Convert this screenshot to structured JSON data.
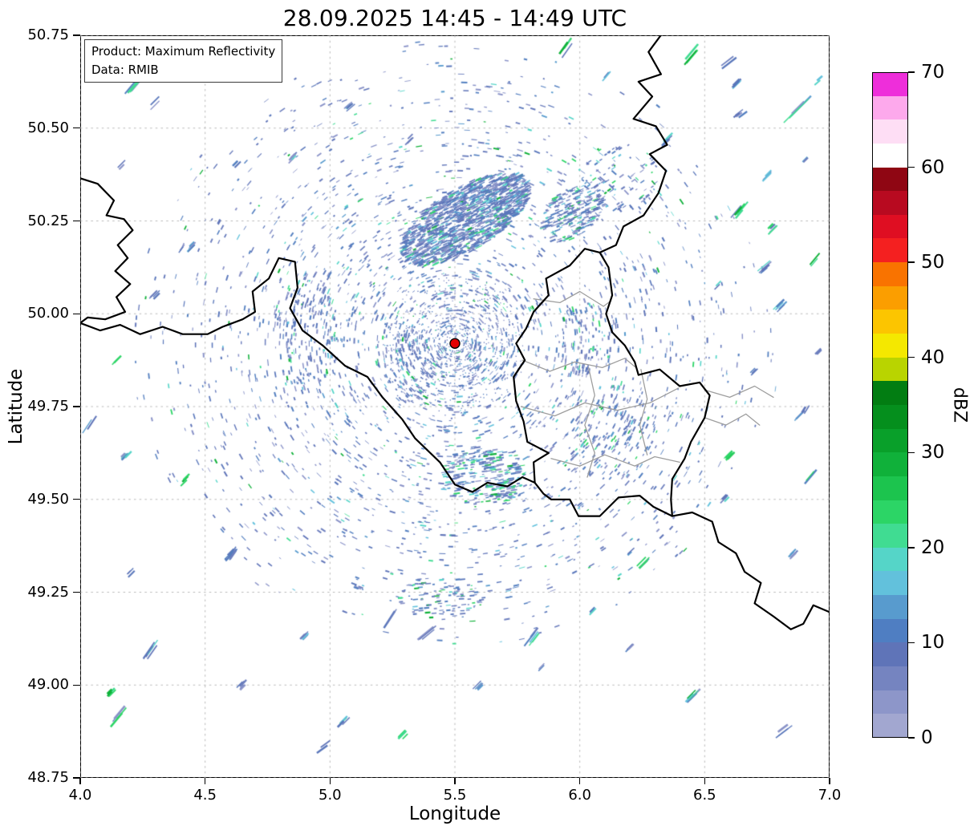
{
  "chart_data": {
    "type": "heatmap",
    "title": "28.09.2025 14:45 - 14:49 UTC",
    "xlabel": "Longitude",
    "ylabel": "Latitude",
    "xlim": [
      4.0,
      7.0
    ],
    "ylim": [
      48.75,
      50.75
    ],
    "grid": true,
    "x_ticks": [
      "4.0",
      "4.5",
      "5.0",
      "5.5",
      "6.0",
      "6.5",
      "7.0"
    ],
    "y_ticks": [
      "48.75",
      "49.00",
      "49.25",
      "49.50",
      "49.75",
      "50.00",
      "50.25",
      "50.50",
      "50.75"
    ],
    "colorbar": {
      "label": "dBZ",
      "range": [
        0,
        70
      ],
      "step": 2.5,
      "ticks": [
        "0",
        "10",
        "20",
        "30",
        "40",
        "50",
        "60",
        "70"
      ],
      "colors": [
        "#a2a7d0",
        "#8d96c9",
        "#7584c0",
        "#5f74b8",
        "#4f7ec2",
        "#589bce",
        "#62c1dc",
        "#55d5c8",
        "#40dc92",
        "#2cd566",
        "#1cc44e",
        "#10b13a",
        "#09a02a",
        "#058f1d",
        "#027d12",
        "#b9d400",
        "#f4e800",
        "#fcc500",
        "#fb9e00",
        "#f97300",
        "#f42020",
        "#df0e22",
        "#b80a20",
        "#8f0613",
        "#ffffff",
        "#fedef5",
        "#fda9ec",
        "#ee2eda"
      ]
    },
    "radar_site": {
      "lon": 5.5,
      "lat": 49.92,
      "marker_color": "#e50000"
    },
    "annotation": {
      "line1": "Product: Maximum Reflectivity",
      "line2": "Data: RMIB"
    },
    "echo_summary": "Widespread weak scattered echoes (about 0-25 dBZ) arranged in concentric speckle arcs around the radar site at (5.5E, 49.92N); densest band northeast of the radar near 5.3-5.9E / 50.15-50.35N; isolated 15-30 dBZ blue-green streaks at far range over all quadrants."
  },
  "map": {
    "border_color": "#000000",
    "inner_border_color": "#9e9e9e",
    "borders_black": [
      [
        [
          4.0,
          50.365
        ],
        [
          4.07,
          50.35
        ],
        [
          4.135,
          50.305
        ],
        [
          4.105,
          50.265
        ],
        [
          4.175,
          50.255
        ],
        [
          4.21,
          50.225
        ],
        [
          4.15,
          50.185
        ],
        [
          4.19,
          50.15
        ],
        [
          4.14,
          50.115
        ],
        [
          4.2,
          50.08
        ],
        [
          4.145,
          50.045
        ],
        [
          4.18,
          50.005
        ],
        [
          4.1,
          49.985
        ],
        [
          4.03,
          49.99
        ],
        [
          4.0,
          49.975
        ],
        [
          4.08,
          49.955
        ],
        [
          4.16,
          49.97
        ],
        [
          4.24,
          49.945
        ],
        [
          4.33,
          49.965
        ],
        [
          4.41,
          49.945
        ],
        [
          4.51,
          49.945
        ],
        [
          4.57,
          49.965
        ],
        [
          4.65,
          49.985
        ],
        [
          4.7,
          50.005
        ],
        [
          4.69,
          50.06
        ],
        [
          4.755,
          50.095
        ],
        [
          4.795,
          50.15
        ],
        [
          4.86,
          50.14
        ],
        [
          4.87,
          50.07
        ],
        [
          4.84,
          50.015
        ],
        [
          4.89,
          49.955
        ],
        [
          4.97,
          49.915
        ],
        [
          5.06,
          49.86
        ],
        [
          5.15,
          49.83
        ],
        [
          5.21,
          49.775
        ],
        [
          5.29,
          49.715
        ],
        [
          5.34,
          49.665
        ],
        [
          5.44,
          49.6
        ],
        [
          5.5,
          49.54
        ],
        [
          5.57,
          49.52
        ],
        [
          5.63,
          49.545
        ],
        [
          5.71,
          49.535
        ],
        [
          5.77,
          49.56
        ],
        [
          5.82,
          49.545
        ]
      ],
      [
        [
          5.82,
          49.545
        ],
        [
          5.815,
          49.6
        ],
        [
          5.875,
          49.625
        ],
        [
          5.79,
          49.655
        ],
        [
          5.775,
          49.71
        ],
        [
          5.745,
          49.765
        ],
        [
          5.735,
          49.83
        ],
        [
          5.78,
          49.875
        ],
        [
          5.745,
          49.92
        ],
        [
          5.785,
          49.96
        ],
        [
          5.815,
          50.005
        ],
        [
          5.875,
          50.05
        ],
        [
          5.865,
          50.095
        ],
        [
          5.96,
          50.13
        ],
        [
          6.02,
          50.175
        ],
        [
          6.08,
          50.165
        ],
        [
          6.115,
          50.125
        ],
        [
          6.13,
          50.05
        ],
        [
          6.105,
          50.0
        ],
        [
          6.13,
          49.95
        ],
        [
          6.18,
          49.915
        ],
        [
          6.22,
          49.87
        ],
        [
          6.235,
          49.835
        ],
        [
          6.32,
          49.85
        ],
        [
          6.4,
          49.805
        ],
        [
          6.48,
          49.815
        ],
        [
          6.52,
          49.78
        ],
        [
          6.5,
          49.72
        ],
        [
          6.445,
          49.655
        ],
        [
          6.42,
          49.61
        ],
        [
          6.37,
          49.555
        ],
        [
          6.365,
          49.5
        ],
        [
          6.37,
          49.455
        ],
        [
          6.295,
          49.48
        ],
        [
          6.24,
          49.51
        ],
        [
          6.155,
          49.505
        ],
        [
          6.08,
          49.455
        ],
        [
          5.995,
          49.455
        ],
        [
          5.96,
          49.5
        ],
        [
          5.885,
          49.5
        ],
        [
          5.855,
          49.515
        ],
        [
          5.82,
          49.545
        ]
      ],
      [
        [
          6.08,
          50.165
        ],
        [
          6.145,
          50.185
        ],
        [
          6.175,
          50.235
        ],
        [
          6.255,
          50.265
        ],
        [
          6.315,
          50.325
        ],
        [
          6.345,
          50.385
        ],
        [
          6.28,
          50.43
        ],
        [
          6.35,
          50.455
        ],
        [
          6.305,
          50.505
        ],
        [
          6.215,
          50.525
        ],
        [
          6.29,
          50.585
        ],
        [
          6.235,
          50.625
        ],
        [
          6.325,
          50.645
        ],
        [
          6.275,
          50.705
        ],
        [
          6.33,
          50.755
        ]
      ],
      [
        [
          6.37,
          49.455
        ],
        [
          6.45,
          49.465
        ],
        [
          6.53,
          49.44
        ],
        [
          6.555,
          49.385
        ],
        [
          6.625,
          49.355
        ],
        [
          6.66,
          49.305
        ],
        [
          6.725,
          49.275
        ],
        [
          6.7,
          49.22
        ],
        [
          6.775,
          49.185
        ],
        [
          6.845,
          49.15
        ],
        [
          6.895,
          49.165
        ],
        [
          6.935,
          49.215
        ],
        [
          7.005,
          49.195
        ]
      ]
    ],
    "borders_gray": [
      [
        [
          5.815,
          50.04
        ],
        [
          5.92,
          50.03
        ],
        [
          6.0,
          50.06
        ],
        [
          6.095,
          50.02
        ],
        [
          6.125,
          50.035
        ]
      ],
      [
        [
          5.77,
          49.875
        ],
        [
          5.88,
          49.845
        ],
        [
          5.98,
          49.87
        ],
        [
          6.09,
          49.855
        ],
        [
          6.18,
          49.88
        ],
        [
          6.225,
          49.855
        ]
      ],
      [
        [
          5.765,
          49.75
        ],
        [
          5.9,
          49.725
        ],
        [
          6.02,
          49.76
        ],
        [
          6.15,
          49.74
        ],
        [
          6.28,
          49.76
        ],
        [
          6.395,
          49.8
        ]
      ],
      [
        [
          6.035,
          49.855
        ],
        [
          6.06,
          49.78
        ],
        [
          6.02,
          49.7
        ],
        [
          6.06,
          49.625
        ],
        [
          6.03,
          49.56
        ]
      ],
      [
        [
          5.885,
          49.61
        ],
        [
          6.0,
          49.59
        ],
        [
          6.1,
          49.62
        ],
        [
          6.22,
          49.59
        ],
        [
          6.3,
          49.615
        ],
        [
          6.4,
          49.6
        ]
      ],
      [
        [
          6.245,
          49.85
        ],
        [
          6.27,
          49.77
        ],
        [
          6.24,
          49.7
        ],
        [
          6.27,
          49.62
        ]
      ],
      [
        [
          6.5,
          49.795
        ],
        [
          6.6,
          49.775
        ],
        [
          6.7,
          49.805
        ],
        [
          6.775,
          49.775
        ]
      ],
      [
        [
          6.5,
          49.72
        ],
        [
          6.585,
          49.7
        ],
        [
          6.665,
          49.73
        ],
        [
          6.72,
          49.7
        ]
      ]
    ]
  },
  "echo_field": {
    "seed": 1337,
    "palette": {
      "blue": [
        "#8a93c8",
        "#6d7fbe",
        "#5a77bb",
        "#537fc0",
        "#5f74b8"
      ],
      "cyan": [
        "#589bce",
        "#62c1dc",
        "#55d5c8"
      ],
      "green": [
        "#40dc92",
        "#2cd566",
        "#10b13a"
      ]
    },
    "ring_field": {
      "count": 3400,
      "r_min": 12,
      "r_max": 405,
      "p_green": 0.05,
      "p_cyan": 0.1
    },
    "dust": {
      "count": 700,
      "r_min": 8,
      "r_max": 90
    },
    "clusters": [
      {
        "lon": 5.54,
        "lat": 50.255,
        "dlon": 0.26,
        "dlat": 0.095,
        "tilt": 0.08,
        "count": 1500,
        "ang": 27,
        "p_green": 0.06,
        "p_cyan": 0.12,
        "size": 7
      },
      {
        "lon": 5.97,
        "lat": 50.27,
        "dlon": 0.13,
        "dlat": 0.07,
        "tilt": 0.03,
        "count": 260,
        "ang": 22,
        "p_green": 0.1,
        "p_cyan": 0.1,
        "size": 6
      },
      {
        "lon": 6.16,
        "lat": 50.37,
        "dlon": 0.17,
        "dlat": 0.09,
        "count": 110,
        "ang": 35,
        "p_green": 0.15,
        "p_cyan": 0.1,
        "size": 5
      },
      {
        "lon": 4.9,
        "lat": 49.95,
        "dlon": 0.13,
        "dlat": 0.16,
        "count": 240,
        "p_green": 0.05,
        "p_cyan": 0.08,
        "size": 5
      },
      {
        "lon": 5.62,
        "lat": 49.565,
        "dlon": 0.17,
        "dlat": 0.08,
        "count": 330,
        "ang": 8,
        "p_green": 0.22,
        "p_cyan": 0.12,
        "size": 6
      },
      {
        "lon": 6.13,
        "lat": 49.68,
        "dlon": 0.19,
        "dlat": 0.13,
        "count": 230,
        "p_green": 0.1,
        "p_cyan": 0.1,
        "size": 5
      },
      {
        "lon": 5.45,
        "lat": 49.235,
        "dlon": 0.17,
        "dlat": 0.06,
        "count": 130,
        "ang": 5,
        "p_green": 0.18,
        "p_cyan": 0.1,
        "size": 5
      },
      {
        "lon": 5.32,
        "lat": 49.86,
        "dlon": 0.1,
        "dlat": 0.1,
        "count": 160,
        "p_green": 0.04,
        "p_cyan": 0.08,
        "size": 4
      },
      {
        "lon": 6.02,
        "lat": 49.93,
        "dlon": 0.12,
        "dlat": 0.1,
        "count": 150,
        "p_green": 0.08,
        "p_cyan": 0.1,
        "size": 5
      }
    ],
    "streaks": [
      [
        4.22,
        50.62,
        50,
        0.1,
        2
      ],
      [
        4.3,
        50.57,
        45,
        0.06,
        0
      ],
      [
        4.17,
        50.4,
        45,
        0.05,
        0
      ],
      [
        5.08,
        50.56,
        40,
        0.05,
        0
      ],
      [
        5.32,
        50.47,
        45,
        0.04,
        0
      ],
      [
        4.62,
        50.4,
        45,
        0.04,
        0
      ],
      [
        4.45,
        50.18,
        45,
        0.04,
        0
      ],
      [
        5.95,
        50.72,
        55,
        0.08,
        2
      ],
      [
        6.1,
        50.64,
        50,
        0.05,
        0
      ],
      [
        6.45,
        50.7,
        50,
        0.1,
        1
      ],
      [
        6.62,
        50.62,
        45,
        0.05,
        0
      ],
      [
        6.86,
        50.55,
        45,
        0.12,
        2
      ],
      [
        6.95,
        50.63,
        40,
        0.05,
        0
      ],
      [
        6.35,
        50.47,
        45,
        0.06,
        0
      ],
      [
        6.75,
        50.37,
        45,
        0.05,
        0
      ],
      [
        6.64,
        50.28,
        50,
        0.08,
        2
      ],
      [
        6.9,
        50.42,
        45,
        0.04,
        0
      ],
      [
        6.93,
        50.14,
        50,
        0.07,
        1
      ],
      [
        6.8,
        50.02,
        45,
        0.05,
        0
      ],
      [
        6.95,
        49.9,
        45,
        0.04,
        0
      ],
      [
        6.7,
        49.85,
        45,
        0.04,
        0
      ],
      [
        6.88,
        49.73,
        45,
        0.05,
        0
      ],
      [
        6.6,
        49.62,
        45,
        0.05,
        1
      ],
      [
        6.93,
        49.56,
        50,
        0.09,
        2
      ],
      [
        6.85,
        49.35,
        45,
        0.05,
        0
      ],
      [
        6.58,
        49.5,
        45,
        0.04,
        0
      ],
      [
        6.45,
        48.97,
        45,
        0.06,
        2
      ],
      [
        6.2,
        49.1,
        45,
        0.04,
        0
      ],
      [
        5.85,
        49.05,
        45,
        0.04,
        0
      ],
      [
        5.3,
        48.87,
        45,
        0.05,
        1
      ],
      [
        5.05,
        48.9,
        45,
        0.06,
        2
      ],
      [
        4.65,
        49.0,
        45,
        0.04,
        0
      ],
      [
        4.15,
        48.92,
        50,
        0.08,
        2
      ],
      [
        4.12,
        48.98,
        45,
        0.04,
        1
      ],
      [
        4.2,
        49.3,
        45,
        0.04,
        0
      ],
      [
        4.42,
        49.55,
        45,
        0.06,
        1
      ],
      [
        4.18,
        49.62,
        45,
        0.04,
        0
      ],
      [
        4.15,
        49.87,
        45,
        0.05,
        1
      ],
      [
        4.3,
        50.05,
        45,
        0.04,
        0
      ],
      [
        4.6,
        49.35,
        45,
        0.05,
        0
      ],
      [
        4.9,
        49.13,
        45,
        0.04,
        0
      ],
      [
        5.6,
        49.0,
        45,
        0.05,
        0
      ],
      [
        6.05,
        49.2,
        45,
        0.04,
        0
      ],
      [
        6.55,
        50.08,
        45,
        0.04,
        0
      ],
      [
        4.85,
        50.42,
        45,
        0.04,
        0
      ]
    ],
    "random_streaks": {
      "count": 24,
      "min_dist": 330
    }
  }
}
